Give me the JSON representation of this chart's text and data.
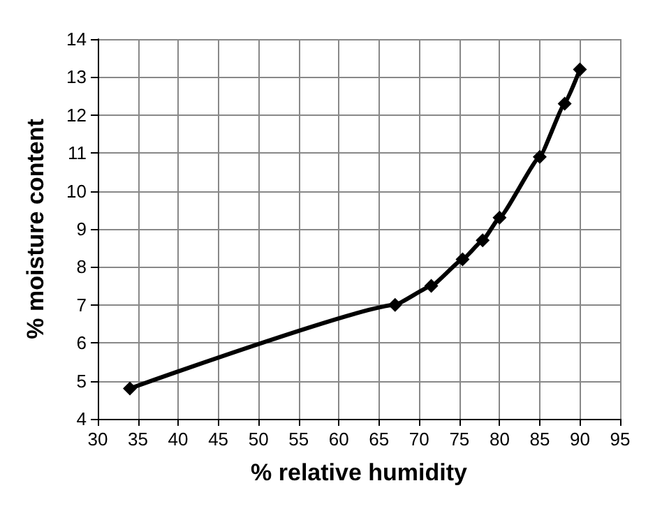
{
  "chart_data": {
    "type": "line",
    "xlabel": "% relative humidity",
    "ylabel": "% moisture content",
    "x": [
      34,
      67,
      71.5,
      75.4,
      77.9,
      80,
      85,
      88.1,
      90
    ],
    "series": [
      {
        "color": "#000000",
        "values": [
          4.8,
          7.0,
          7.5,
          8.2,
          8.7,
          9.3,
          10.9,
          12.3,
          13.2
        ]
      }
    ],
    "xlim": [
      30,
      95
    ],
    "xticks": [
      30,
      35,
      40,
      45,
      50,
      55,
      60,
      65,
      70,
      75,
      80,
      85,
      90,
      95
    ],
    "ylim": [
      4,
      14
    ],
    "yticks": [
      4,
      5,
      6,
      7,
      8,
      9,
      10,
      11,
      12,
      13,
      14
    ],
    "grid": true,
    "marker": "diamond",
    "line_style": "solid"
  }
}
